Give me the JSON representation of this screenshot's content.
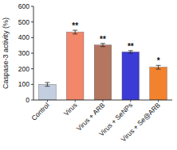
{
  "chart_data": {
    "type": "bar",
    "y_label": "Caspase-3 activity (%)",
    "categories": [
      "Control",
      "Virus",
      "Virus + ARB",
      "Virus + SeNPs",
      "Virus + Se@ARB"
    ],
    "values": [
      100,
      435,
      352,
      308,
      210
    ],
    "errors": [
      12,
      12,
      10,
      8,
      12
    ],
    "significance": [
      null,
      "**",
      "**",
      "**",
      "*"
    ],
    "colors": [
      "#c3cee0",
      "#f2876a",
      "#b5765f",
      "#3b3bd6",
      "#f2822e"
    ],
    "ylim": [
      0,
      600
    ],
    "yticks": [
      0,
      100,
      200,
      300,
      400,
      500,
      600
    ],
    "grid": false
  }
}
